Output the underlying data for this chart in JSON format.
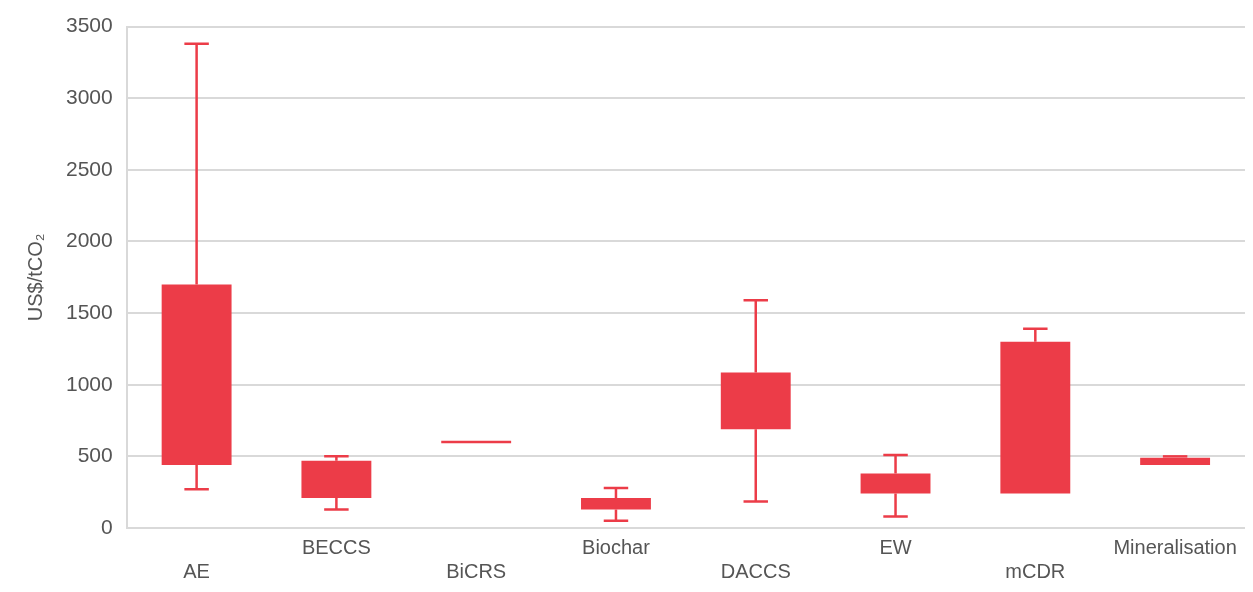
{
  "chart_data": {
    "type": "box",
    "ylabel": "US$/tCO₂",
    "categories": [
      "AE",
      "BECCS",
      "BiCRS",
      "Biochar",
      "DACCS",
      "EW",
      "mCDR",
      "Mineralisation"
    ],
    "color": "#ec3c48",
    "boxes": [
      {
        "low": 270,
        "q1": 440,
        "q3": 1700,
        "high": 3380
      },
      {
        "low": 130,
        "q1": 210,
        "q3": 470,
        "high": 500
      },
      {
        "low": 600,
        "q1": 600,
        "q3": 600,
        "high": 600
      },
      {
        "low": 50,
        "q1": 130,
        "q3": 210,
        "high": 280
      },
      {
        "low": 185,
        "q1": 690,
        "q3": 1085,
        "high": 1590
      },
      {
        "low": 80,
        "q1": 240,
        "q3": 380,
        "high": 510
      },
      {
        "low": 240,
        "q1": 240,
        "q3": 1300,
        "high": 1390
      },
      {
        "low": 440,
        "q1": 440,
        "q3": 490,
        "high": 500
      }
    ],
    "ylim": [
      0,
      3500
    ],
    "yticks": [
      0,
      500,
      1000,
      1500,
      2000,
      2500,
      3000,
      3500
    ],
    "grid": "y",
    "legend": false
  }
}
